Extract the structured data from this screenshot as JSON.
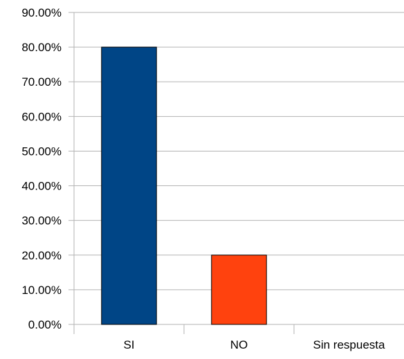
{
  "chart_data": {
    "type": "bar",
    "categories": [
      "SI",
      "NO",
      "Sin respuesta"
    ],
    "values": [
      80,
      20,
      0
    ],
    "colors": [
      "#004586",
      "#ff420e",
      "#ffd320"
    ],
    "ylim": [
      0,
      90
    ],
    "ytick_step": 10,
    "ytick_labels": [
      "0.00%",
      "10.00%",
      "20.00%",
      "30.00%",
      "40.00%",
      "50.00%",
      "60.00%",
      "70.00%",
      "80.00%",
      "90.00%"
    ],
    "grid": true,
    "grid_color": "#b3b3b3",
    "legend": "none"
  }
}
